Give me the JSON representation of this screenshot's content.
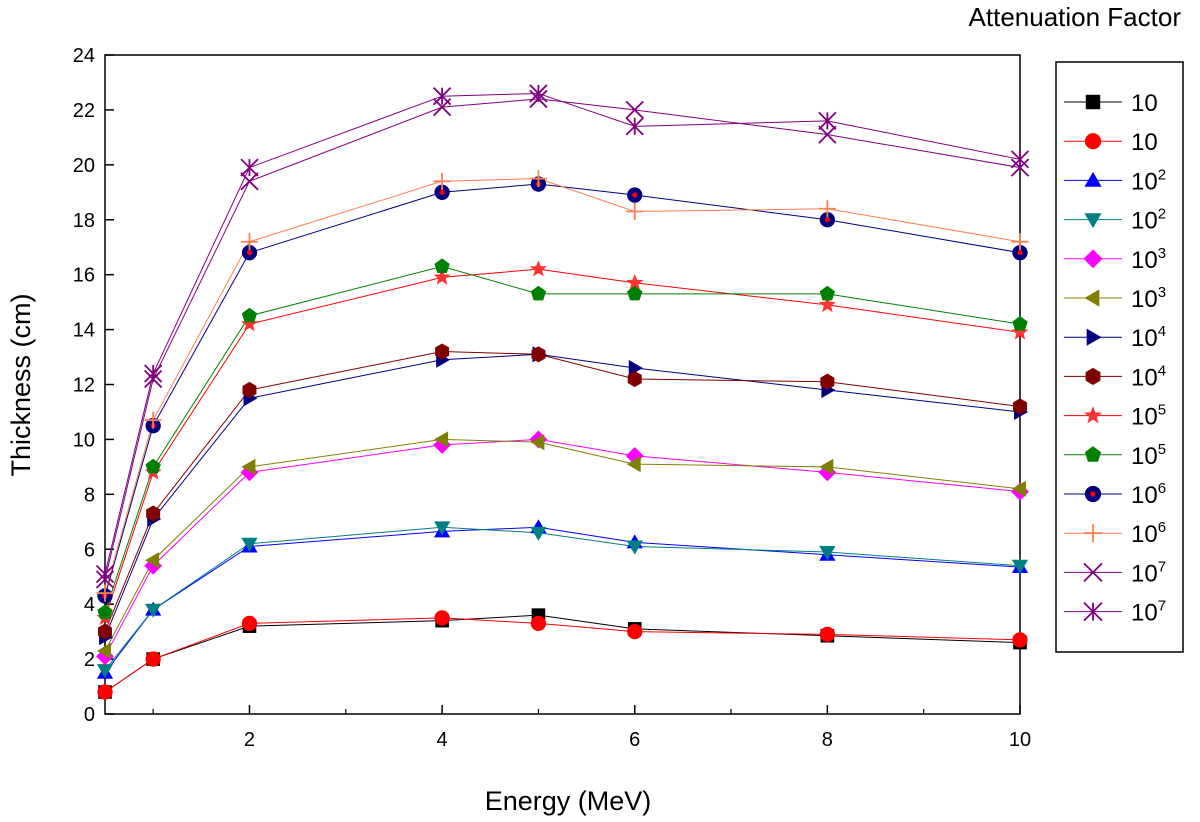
{
  "chart_data": {
    "type": "line",
    "title": "Attenuation Factor",
    "xlabel": "Energy (MeV)",
    "ylabel": "Thickness (cm)",
    "xlim": [
      0.5,
      10
    ],
    "ylim": [
      0,
      24
    ],
    "xticks": [
      2,
      4,
      6,
      8,
      10
    ],
    "xminor": [
      1,
      3,
      5,
      7,
      9
    ],
    "yticks": [
      0,
      2,
      4,
      6,
      8,
      10,
      12,
      14,
      16,
      18,
      20,
      22,
      24
    ],
    "legend_title": "Attenuation Factor",
    "legend_position": "right",
    "x": [
      0.5,
      1,
      2,
      4,
      5,
      6,
      8,
      10
    ],
    "series": [
      {
        "name": "10",
        "base": "10",
        "exp": "",
        "marker": "square",
        "color": "#000000",
        "line_color": "#000000",
        "values": [
          0.8,
          2.0,
          3.2,
          3.4,
          3.6,
          3.1,
          2.85,
          2.6
        ]
      },
      {
        "name": "10",
        "base": "10",
        "exp": "",
        "marker": "circle",
        "color": "#ff0000",
        "line_color": "#ff0000",
        "values": [
          0.8,
          2.0,
          3.3,
          3.5,
          3.3,
          3.0,
          2.9,
          2.7
        ]
      },
      {
        "name": "10^2",
        "base": "10",
        "exp": "2",
        "marker": "triangle-up",
        "color": "#0000ff",
        "line_color": "#0000ff",
        "values": [
          1.5,
          3.8,
          6.1,
          6.65,
          6.8,
          6.25,
          5.8,
          5.35
        ]
      },
      {
        "name": "10^2",
        "base": "10",
        "exp": "2",
        "marker": "triangle-down",
        "color": "#008080",
        "line_color": "#008080",
        "values": [
          1.6,
          3.8,
          6.2,
          6.8,
          6.6,
          6.1,
          5.9,
          5.4
        ]
      },
      {
        "name": "10^3",
        "base": "10",
        "exp": "3",
        "marker": "diamond",
        "color": "#ff00ff",
        "line_color": "#ff00ff",
        "values": [
          2.1,
          5.4,
          8.8,
          9.8,
          10.0,
          9.4,
          8.8,
          8.1
        ]
      },
      {
        "name": "10^3",
        "base": "10",
        "exp": "3",
        "marker": "triangle-left",
        "color": "#808000",
        "line_color": "#808000",
        "values": [
          2.3,
          5.6,
          9.0,
          10.0,
          9.9,
          9.1,
          9.0,
          8.2
        ]
      },
      {
        "name": "10^4",
        "base": "10",
        "exp": "4",
        "marker": "triangle-right",
        "color": "#000080",
        "line_color": "#000080",
        "values": [
          2.8,
          7.1,
          11.5,
          12.9,
          13.1,
          12.6,
          11.8,
          11.0
        ]
      },
      {
        "name": "10^4",
        "base": "10",
        "exp": "4",
        "marker": "hexagon",
        "color": "#800000",
        "line_color": "#800000",
        "values": [
          3.0,
          7.3,
          11.8,
          13.2,
          13.1,
          12.2,
          12.1,
          11.2
        ]
      },
      {
        "name": "10^5",
        "base": "10",
        "exp": "5",
        "marker": "star",
        "color": "#ff3333",
        "line_color": "#ff0000",
        "values": [
          3.5,
          8.8,
          14.2,
          15.9,
          16.2,
          15.7,
          14.9,
          13.9
        ]
      },
      {
        "name": "10^5",
        "base": "10",
        "exp": "5",
        "marker": "pentagon",
        "color": "#008000",
        "line_color": "#008000",
        "values": [
          3.7,
          9.0,
          14.5,
          16.3,
          15.3,
          15.3,
          15.3,
          14.2
        ]
      },
      {
        "name": "10^6",
        "base": "10",
        "exp": "6",
        "marker": "circle-dot",
        "color": "#000080",
        "line_color": "#000080",
        "values": [
          4.3,
          10.5,
          16.8,
          19.0,
          19.3,
          18.9,
          18.0,
          16.8
        ]
      },
      {
        "name": "10^6",
        "base": "10",
        "exp": "6",
        "marker": "plus",
        "color": "#ff7f50",
        "line_color": "#ff7f50",
        "values": [
          4.4,
          10.7,
          17.2,
          19.4,
          19.5,
          18.3,
          18.4,
          17.2
        ]
      },
      {
        "name": "10^7",
        "base": "10",
        "exp": "7",
        "marker": "cross",
        "color": "#800080",
        "line_color": "#800080",
        "values": [
          4.9,
          12.2,
          19.4,
          22.1,
          22.4,
          22.0,
          21.1,
          19.9
        ]
      },
      {
        "name": "10^7",
        "base": "10",
        "exp": "7",
        "marker": "asterisk",
        "color": "#800080",
        "line_color": "#800080",
        "values": [
          5.1,
          12.4,
          19.9,
          22.5,
          22.6,
          21.4,
          21.6,
          20.2
        ]
      }
    ]
  }
}
